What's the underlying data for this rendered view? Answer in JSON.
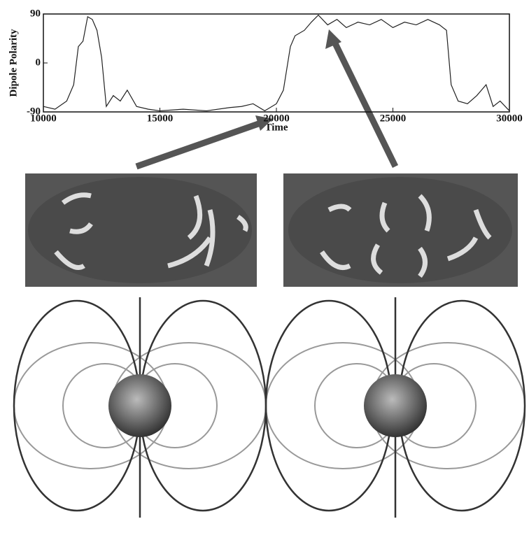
{
  "chart_data": {
    "type": "line",
    "x_label": "Time",
    "y_label": "Dipole Polarity",
    "x": [
      10000,
      10500,
      11000,
      11300,
      11500,
      11700,
      11900,
      12100,
      12300,
      12500,
      12700,
      13000,
      13300,
      13600,
      14000,
      14500,
      15000,
      16000,
      17000,
      18000,
      18500,
      19000,
      19500,
      20000,
      20300,
      20600,
      20800,
      21200,
      21500,
      21800,
      22200,
      22600,
      23000,
      23500,
      24000,
      24500,
      25000,
      25500,
      26000,
      26500,
      27000,
      27300,
      27500,
      27800,
      28200,
      28600,
      29000,
      29300,
      29600,
      30000
    ],
    "series": [
      {
        "name": "Dipole Polarity",
        "color": "#222",
        "values": [
          -80,
          -85,
          -70,
          -40,
          30,
          40,
          85,
          80,
          60,
          10,
          -80,
          -60,
          -70,
          -50,
          -80,
          -85,
          -88,
          -85,
          -88,
          -82,
          -80,
          -75,
          -88,
          -75,
          -50,
          30,
          50,
          60,
          75,
          88,
          70,
          80,
          65,
          75,
          70,
          80,
          65,
          75,
          70,
          80,
          70,
          60,
          -40,
          -70,
          -75,
          -60,
          -40,
          -80,
          -70,
          -88
        ]
      }
    ],
    "xlim": [
      10000,
      30000
    ],
    "ylim": [
      -90,
      90
    ],
    "xticks": [
      10000,
      15000,
      20000,
      25000,
      30000
    ],
    "yticks": [
      -90,
      0,
      90
    ]
  }
}
